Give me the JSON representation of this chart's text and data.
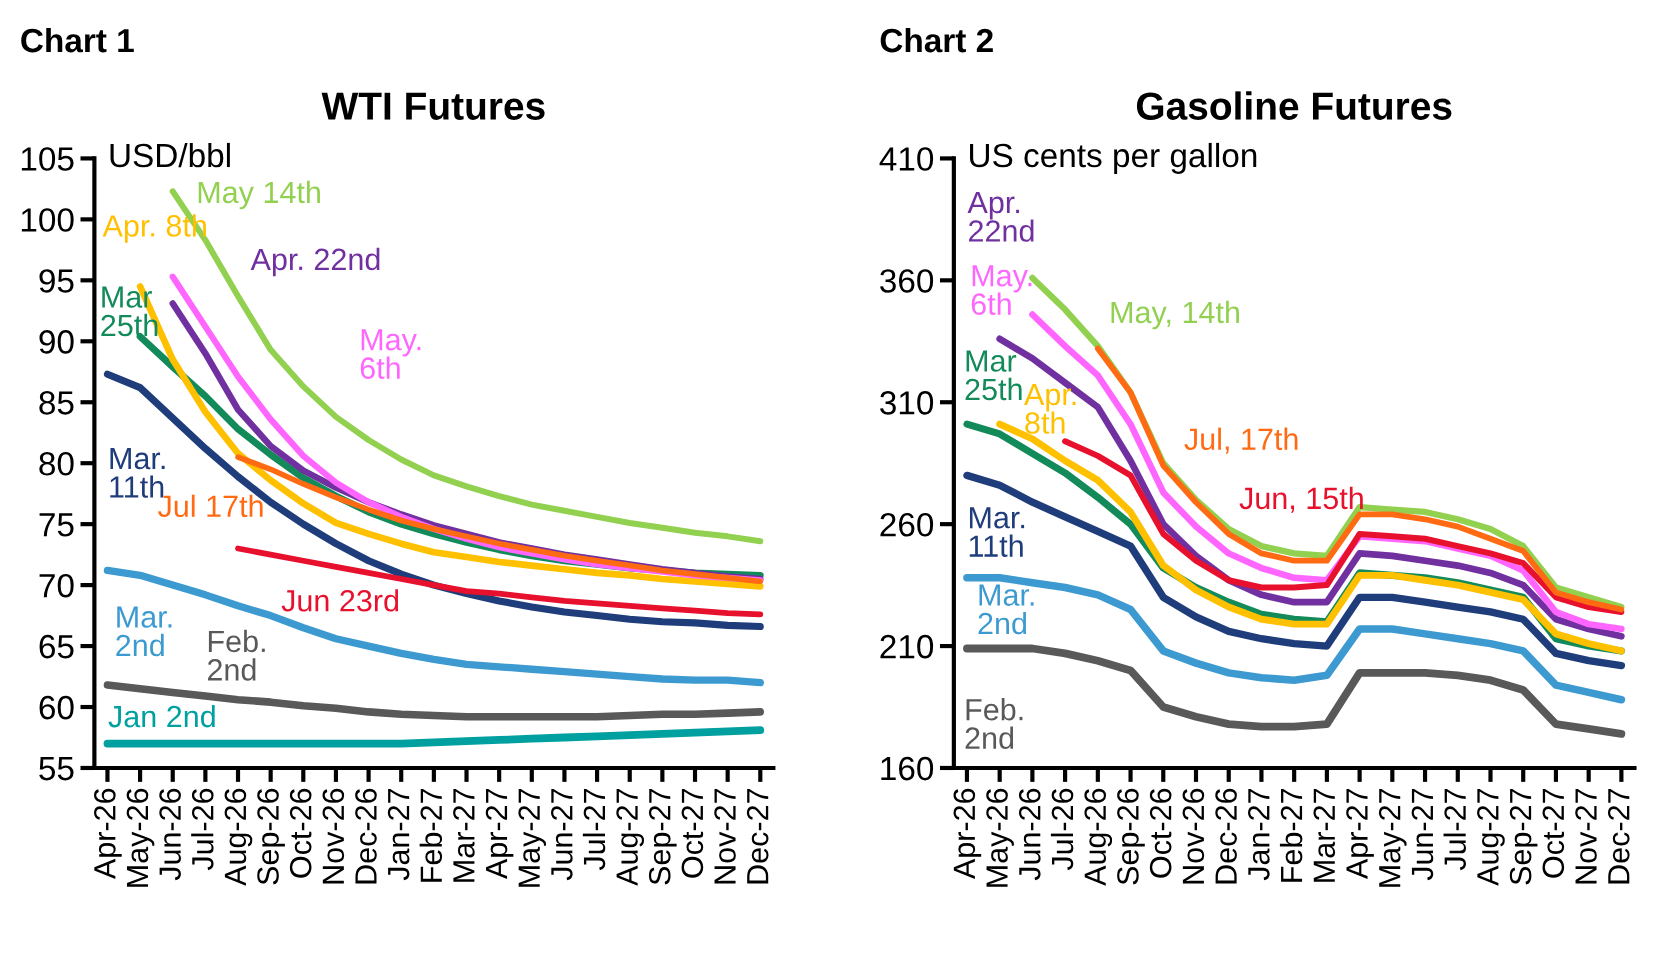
{
  "chart_data": [
    {
      "type": "line",
      "annotations": [
        "Chart 1"
      ],
      "title": "WTI Futures",
      "ylabel": "USD/bbl",
      "categories": [
        "Apr-26",
        "May-26",
        "Jun-26",
        "Jul-26",
        "Aug-26",
        "Sep-26",
        "Oct-26",
        "Nov-26",
        "Dec-26",
        "Jan-27",
        "Feb-27",
        "Mar-27",
        "Apr-27",
        "May-27",
        "Jun-27",
        "Jul-27",
        "Aug-27",
        "Sep-27",
        "Oct-27",
        "Nov-27",
        "Dec-27"
      ],
      "ylim": [
        55,
        105
      ],
      "yticks": [
        55,
        60,
        65,
        70,
        75,
        80,
        85,
        90,
        95,
        100,
        105
      ],
      "grid": false,
      "legend": false,
      "marker": "none",
      "line_style": "solid",
      "series": [
        {
          "name": "Jan 2nd",
          "color": "#00a0a0",
          "values": [
            57,
            57,
            57,
            57,
            57,
            57,
            57,
            57,
            57,
            57,
            57.1,
            57.2,
            57.3,
            57.4,
            57.5,
            57.6,
            57.7,
            57.8,
            57.9,
            58,
            58.1
          ]
        },
        {
          "name": "Feb. 2nd",
          "color": "#595959",
          "values": [
            61.8,
            61.5,
            61.2,
            60.9,
            60.6,
            60.4,
            60.1,
            59.9,
            59.6,
            59.4,
            59.3,
            59.2,
            59.2,
            59.2,
            59.2,
            59.2,
            59.3,
            59.4,
            59.4,
            59.5,
            59.6
          ]
        },
        {
          "name": "Mar. 2nd",
          "color": "#3d9ad1",
          "values": [
            71.2,
            70.8,
            70.0,
            69.2,
            68.3,
            67.5,
            66.5,
            65.6,
            65.0,
            64.4,
            63.9,
            63.5,
            63.3,
            63.1,
            62.9,
            62.7,
            62.5,
            62.3,
            62.2,
            62.2,
            62.0
          ]
        },
        {
          "name": "Mar. 11th",
          "color": "#1f3d7a",
          "values": [
            87.3,
            86.2,
            83.7,
            81.2,
            78.9,
            76.8,
            75.0,
            73.4,
            72.0,
            70.9,
            70.0,
            69.3,
            68.7,
            68.2,
            67.8,
            67.5,
            67.2,
            67.0,
            66.9,
            66.7,
            66.6
          ]
        },
        {
          "name": "Mar 25th",
          "color": "#138a5a",
          "values": [
            null,
            90.4,
            87.9,
            85.5,
            82.8,
            80.7,
            78.8,
            77.3,
            76.0,
            75.0,
            74.2,
            73.5,
            72.9,
            72.4,
            72.0,
            71.7,
            71.4,
            71.2,
            71.0,
            70.9,
            70.8
          ]
        },
        {
          "name": "Apr. 8th",
          "color": "#ffc000",
          "values": [
            null,
            94.5,
            88.5,
            84.2,
            80.8,
            78.6,
            76.7,
            75.1,
            74.2,
            73.4,
            72.7,
            72.3,
            71.9,
            71.6,
            71.3,
            71.0,
            70.8,
            70.5,
            70.3,
            70.1,
            69.9
          ]
        },
        {
          "name": "Apr. 22nd",
          "color": "#7030a0",
          "values": [
            null,
            null,
            93.1,
            89.0,
            84.4,
            81.4,
            79.4,
            78.0,
            76.8,
            75.8,
            74.9,
            74.2,
            73.5,
            73.0,
            72.5,
            72.1,
            71.7,
            71.3,
            71.0,
            70.7,
            70.5
          ]
        },
        {
          "name": "May. 6th",
          "color": "#ff66ff",
          "values": [
            null,
            null,
            95.3,
            91.2,
            87.1,
            83.6,
            80.6,
            78.4,
            76.8,
            75.6,
            74.6,
            73.8,
            73.1,
            72.6,
            72.1,
            71.7,
            71.4,
            71.1,
            70.8,
            70.6,
            70.4
          ]
        },
        {
          "name": "May 14th",
          "color": "#92d050",
          "values": [
            null,
            null,
            102.3,
            98.3,
            93.7,
            89.3,
            86.3,
            83.8,
            81.9,
            80.3,
            79.0,
            78.1,
            77.3,
            76.6,
            76.1,
            75.6,
            75.1,
            74.7,
            74.3,
            74.0,
            73.6
          ]
        },
        {
          "name": "Jun 23rd",
          "color": "#e8112d",
          "values": [
            null,
            null,
            null,
            null,
            73.0,
            72.5,
            72.0,
            71.5,
            71.0,
            70.5,
            70.0,
            69.5,
            69.3,
            69.0,
            68.7,
            68.5,
            68.3,
            68.1,
            67.9,
            67.7,
            67.6
          ]
        },
        {
          "name": "Jul 17th",
          "color": "#ff6a13",
          "values": [
            null,
            null,
            null,
            null,
            80.5,
            79.5,
            78.3,
            77.2,
            76.2,
            75.3,
            74.6,
            74.0,
            73.4,
            72.9,
            72.4,
            72.0,
            71.6,
            71.2,
            70.9,
            70.6,
            70.3
          ]
        }
      ]
    },
    {
      "type": "line",
      "annotations": [
        "Chart 2"
      ],
      "title": "Gasoline Futures",
      "ylabel": "US cents per gallon",
      "categories": [
        "Apr-26",
        "May-26",
        "Jun-26",
        "Jul-26",
        "Aug-26",
        "Sep-26",
        "Oct-26",
        "Nov-26",
        "Dec-26",
        "Jan-27",
        "Feb-27",
        "Mar-27",
        "Apr-27",
        "May-27",
        "Jun-27",
        "Jul-27",
        "Aug-27",
        "Sep-27",
        "Oct-27",
        "Nov-27",
        "Dec-27"
      ],
      "ylim": [
        160,
        410
      ],
      "yticks": [
        160,
        210,
        260,
        310,
        360,
        410
      ],
      "grid": false,
      "legend": false,
      "marker": "none",
      "line_style": "solid",
      "series": [
        {
          "name": "Feb. 2nd",
          "color": "#595959",
          "values": [
            209,
            209,
            209,
            207,
            204,
            200,
            185,
            181,
            178,
            177,
            177,
            178,
            199,
            199,
            199,
            198,
            196,
            192,
            178,
            176,
            174
          ]
        },
        {
          "name": "Mar. 2nd",
          "color": "#3d9ad1",
          "values": [
            238,
            238,
            236,
            234,
            231,
            225,
            208,
            203,
            199,
            197,
            196,
            198,
            217,
            217,
            215,
            213,
            211,
            208,
            194,
            191,
            188
          ]
        },
        {
          "name": "Mar. 11th",
          "color": "#1f3d7a",
          "values": [
            280,
            276,
            269,
            263,
            257,
            251,
            230,
            222,
            216,
            213,
            211,
            210,
            230,
            230,
            228,
            226,
            224,
            221,
            207,
            204,
            202
          ]
        },
        {
          "name": "Mar 25th",
          "color": "#138a5a",
          "values": [
            301,
            297,
            289,
            281,
            271,
            260,
            242,
            234,
            228,
            223,
            221,
            220,
            240,
            239,
            238,
            236,
            233,
            230,
            213,
            210,
            208
          ]
        },
        {
          "name": "Apr. 8th",
          "color": "#ffc000",
          "values": [
            null,
            301,
            295,
            286,
            278,
            265,
            243,
            233,
            226,
            221,
            219,
            219,
            239,
            239,
            237,
            235,
            232,
            229,
            215,
            211,
            208
          ]
        },
        {
          "name": "Apr. 22nd",
          "color": "#7030a0",
          "values": [
            null,
            336,
            328,
            318,
            308,
            286,
            260,
            247,
            237,
            231,
            228,
            228,
            248,
            247,
            245,
            243,
            240,
            235,
            221,
            217,
            214
          ]
        },
        {
          "name": "May. 6th",
          "color": "#ff66ff",
          "values": [
            null,
            null,
            346,
            333,
            321,
            301,
            273,
            259,
            248,
            242,
            238,
            237,
            255,
            254,
            253,
            250,
            247,
            241,
            224,
            219,
            217
          ]
        },
        {
          "name": "May, 14th",
          "color": "#92d050",
          "values": [
            null,
            null,
            361,
            348,
            333,
            314,
            285,
            270,
            258,
            251,
            248,
            247,
            267,
            266,
            265,
            262,
            258,
            251,
            234,
            230,
            226
          ]
        },
        {
          "name": "Jun, 15th",
          "color": "#e8112d",
          "values": [
            null,
            null,
            null,
            294,
            288,
            280,
            256,
            245,
            237,
            234,
            234,
            235,
            256,
            255,
            254,
            251,
            248,
            244,
            230,
            226,
            224
          ]
        },
        {
          "name": "Jul, 17th",
          "color": "#ff6a13",
          "values": [
            null,
            null,
            null,
            null,
            332,
            314,
            284,
            269,
            256,
            248,
            245,
            245,
            264,
            264,
            262,
            259,
            254,
            249,
            232,
            228,
            225
          ]
        }
      ]
    }
  ]
}
